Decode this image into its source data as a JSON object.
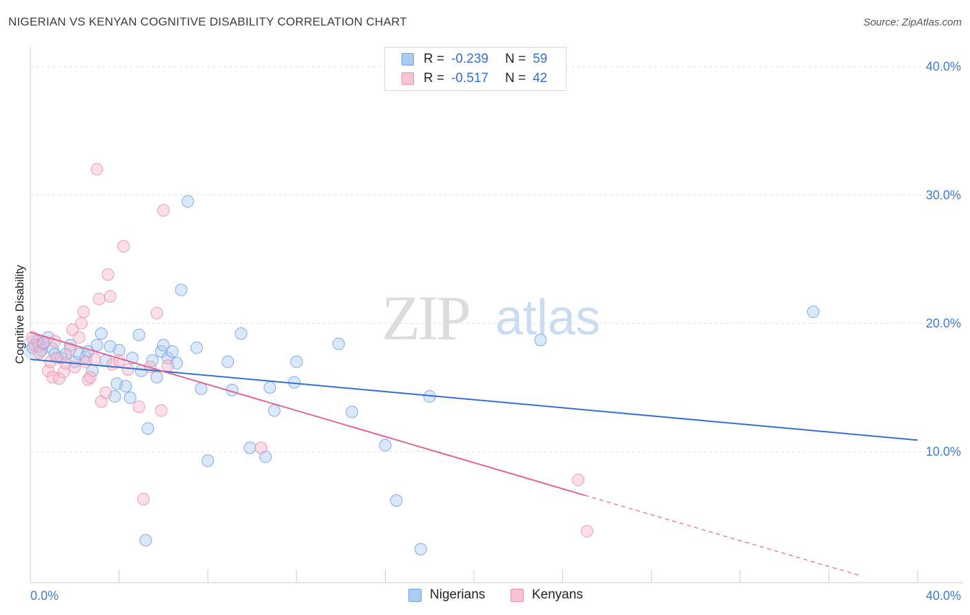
{
  "header": {
    "title": "NIGERIAN VS KENYAN COGNITIVE DISABILITY CORRELATION CHART",
    "source": "Source: ZipAtlas.com"
  },
  "watermark": {
    "zip": "ZIP",
    "atlas": "atlas"
  },
  "legend": {
    "rows": [
      {
        "r_label": "R =",
        "r_value": "-0.239",
        "n_label": "N =",
        "n_value": "59"
      },
      {
        "r_label": "R =",
        "r_value": "-0.517",
        "n_label": "N =",
        "n_value": "42"
      }
    ]
  },
  "bottom_legend": {
    "nigerians": "Nigerians",
    "kenyans": "Kenyans"
  },
  "colors": {
    "nigerian_fill": "#aecbf2",
    "nigerian_stroke": "#6c9ee0",
    "nigerian_line": "#2f6fd0",
    "kenyan_fill": "#f6b8cb",
    "kenyan_stroke": "#ea8cac",
    "kenyan_line": "#e2618f",
    "grid": "#dcdcdc",
    "tick_text": "#3f7bcf"
  },
  "chart_data": {
    "type": "scatter",
    "title": "NIGERIAN VS KENYAN COGNITIVE DISABILITY CORRELATION CHART",
    "xlabel": "",
    "ylabel": "Cognitive Disability",
    "xlim": [
      0,
      40
    ],
    "ylim": [
      0,
      40
    ],
    "x_tick_labels": [
      "0.0%",
      "40.0%"
    ],
    "y_ticks": [
      10,
      20,
      30,
      40
    ],
    "y_tick_labels": [
      "10.0%",
      "20.0%",
      "30.0%",
      "40.0%"
    ],
    "grid": true,
    "legend_position": "top-center",
    "series": [
      {
        "name": "Nigerians",
        "r": -0.239,
        "n": 59,
        "trend": {
          "x": [
            0,
            40
          ],
          "y": [
            17.2,
            10.9
          ],
          "dashed_from": null
        },
        "points": [
          [
            0.1,
            18.1
          ],
          [
            0.3,
            18.6
          ],
          [
            0.4,
            18.2
          ],
          [
            0.5,
            17.9
          ],
          [
            0.6,
            18.4
          ],
          [
            0.8,
            18.9
          ],
          [
            1.0,
            18.0
          ],
          [
            1.1,
            17.6
          ],
          [
            1.4,
            17.3
          ],
          [
            1.6,
            17.6
          ],
          [
            1.8,
            18.3
          ],
          [
            2.0,
            17.0
          ],
          [
            2.2,
            17.6
          ],
          [
            2.5,
            17.4
          ],
          [
            2.6,
            17.8
          ],
          [
            2.8,
            16.3
          ],
          [
            3.0,
            18.3
          ],
          [
            3.2,
            19.2
          ],
          [
            3.4,
            17.1
          ],
          [
            3.6,
            18.2
          ],
          [
            3.8,
            14.3
          ],
          [
            3.9,
            15.3
          ],
          [
            4.0,
            17.9
          ],
          [
            4.3,
            15.1
          ],
          [
            4.5,
            14.2
          ],
          [
            4.6,
            17.3
          ],
          [
            4.9,
            19.1
          ],
          [
            5.0,
            16.3
          ],
          [
            5.3,
            11.8
          ],
          [
            5.5,
            17.1
          ],
          [
            5.7,
            15.8
          ],
          [
            5.9,
            17.8
          ],
          [
            6.0,
            18.3
          ],
          [
            6.2,
            17.3
          ],
          [
            6.4,
            17.8
          ],
          [
            6.6,
            16.9
          ],
          [
            6.8,
            22.6
          ],
          [
            7.1,
            29.5
          ],
          [
            7.5,
            18.1
          ],
          [
            7.7,
            14.9
          ],
          [
            8.0,
            9.3
          ],
          [
            8.9,
            17.0
          ],
          [
            9.1,
            14.8
          ],
          [
            9.5,
            19.2
          ],
          [
            9.9,
            10.3
          ],
          [
            10.6,
            9.6
          ],
          [
            10.8,
            15.0
          ],
          [
            11.0,
            13.2
          ],
          [
            11.9,
            15.4
          ],
          [
            12.0,
            17.0
          ],
          [
            13.9,
            18.4
          ],
          [
            14.5,
            13.1
          ],
          [
            16.0,
            10.5
          ],
          [
            16.5,
            6.2
          ],
          [
            17.6,
            2.4
          ],
          [
            18.0,
            14.3
          ],
          [
            23.0,
            18.7
          ],
          [
            35.3,
            20.9
          ],
          [
            5.2,
            3.1
          ]
        ]
      },
      {
        "name": "Kenyans",
        "r": -0.517,
        "n": 42,
        "trend": {
          "x": [
            0,
            25.0
          ],
          "y": [
            19.3,
            6.6
          ],
          "dashed_from": 25.0,
          "dashed_to": [
            37.5,
            0.3
          ]
        },
        "points": [
          [
            0.1,
            18.9
          ],
          [
            0.2,
            18.3
          ],
          [
            0.4,
            17.7
          ],
          [
            0.6,
            18.5
          ],
          [
            0.8,
            16.3
          ],
          [
            0.9,
            17.0
          ],
          [
            1.0,
            15.8
          ],
          [
            1.2,
            17.3
          ],
          [
            1.3,
            15.7
          ],
          [
            1.5,
            16.2
          ],
          [
            1.6,
            16.9
          ],
          [
            1.8,
            18.0
          ],
          [
            1.9,
            19.5
          ],
          [
            2.0,
            16.6
          ],
          [
            2.2,
            18.9
          ],
          [
            2.3,
            20.0
          ],
          [
            2.4,
            20.9
          ],
          [
            2.5,
            17.0
          ],
          [
            2.6,
            15.6
          ],
          [
            2.7,
            15.8
          ],
          [
            2.9,
            17.2
          ],
          [
            3.0,
            32.0
          ],
          [
            3.1,
            21.9
          ],
          [
            3.2,
            13.9
          ],
          [
            3.4,
            14.6
          ],
          [
            3.5,
            23.8
          ],
          [
            3.6,
            22.1
          ],
          [
            3.7,
            16.8
          ],
          [
            4.0,
            17.1
          ],
          [
            4.2,
            26.0
          ],
          [
            4.4,
            16.4
          ],
          [
            4.9,
            13.5
          ],
          [
            5.1,
            6.3
          ],
          [
            5.4,
            16.6
          ],
          [
            5.7,
            20.8
          ],
          [
            5.9,
            13.2
          ],
          [
            6.0,
            28.8
          ],
          [
            6.2,
            16.7
          ],
          [
            10.4,
            10.3
          ],
          [
            24.7,
            7.8
          ],
          [
            25.1,
            3.8
          ],
          [
            1.1,
            18.6
          ]
        ]
      }
    ]
  }
}
